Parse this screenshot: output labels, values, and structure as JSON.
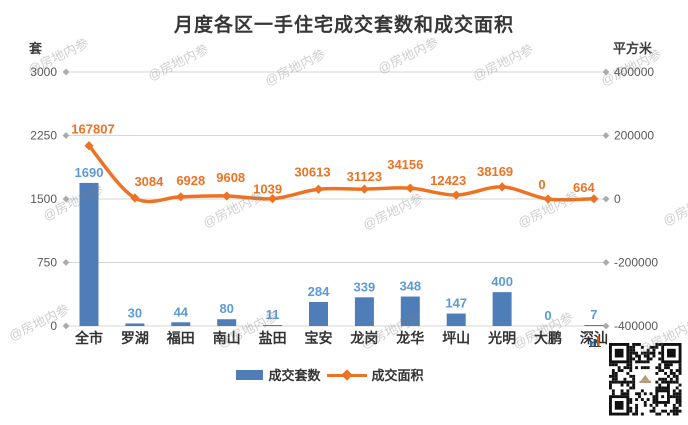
{
  "title": "月度各区一手住宅成交套数和成交面积",
  "watermark_text": "@房地内参",
  "chart_data": {
    "type": "bar",
    "subtype": "bar-line-combo",
    "title": "月度各区一手住宅成交套数和成交面积",
    "categories": [
      "全市",
      "罗湖",
      "福田",
      "南山",
      "盐田",
      "宝安",
      "龙岗",
      "龙华",
      "坪山",
      "光明",
      "大鹏",
      "深汕"
    ],
    "series": [
      {
        "name": "成交套数",
        "type": "bar",
        "axis": "left",
        "color": "#4e7db8",
        "label_color": "#5b9bd5",
        "values": [
          1690,
          30,
          44,
          80,
          11,
          284,
          339,
          348,
          147,
          400,
          0,
          7
        ]
      },
      {
        "name": "成交面积",
        "type": "line",
        "axis": "right",
        "color": "#ee7223",
        "label_color": "#ee7223",
        "values": [
          167807,
          3084,
          6928,
          9608,
          1039,
          30613,
          31123,
          34156,
          12423,
          38169,
          0,
          664
        ]
      }
    ],
    "left_axis": {
      "unit": "套",
      "min": 0,
      "max": 3000,
      "ticks": [
        3000,
        2250,
        1500,
        750,
        0
      ]
    },
    "right_axis": {
      "unit": "平方米",
      "min": -400000,
      "max": 400000,
      "ticks": [
        400000,
        200000,
        0,
        -200000,
        -400000
      ]
    },
    "legend": [
      "成交套数",
      "成交面积"
    ],
    "legend_position": "bottom",
    "grid": true
  }
}
